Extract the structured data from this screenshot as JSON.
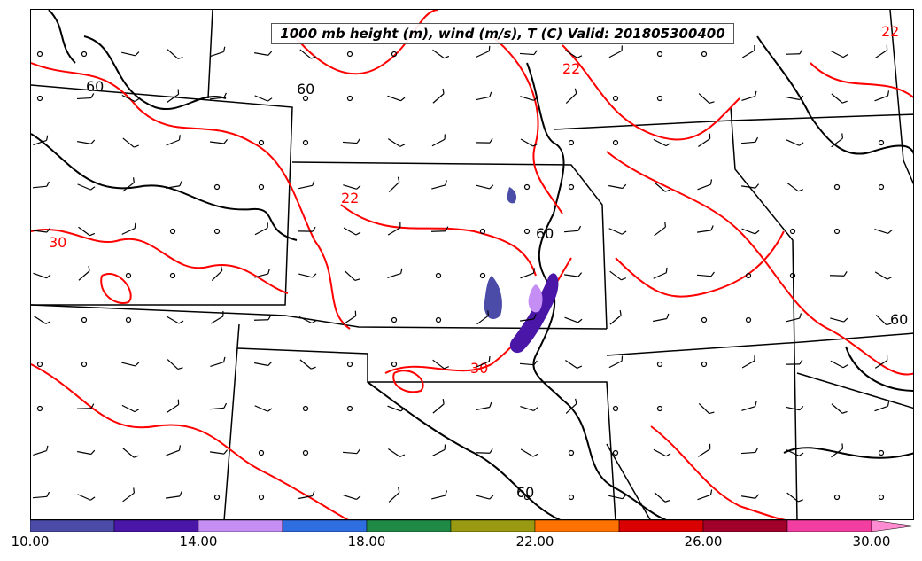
{
  "map": {
    "title": "1000 mb height (m), wind (m/s), T (C) Valid: 201805300400",
    "temp_contour_color": "#ff0000",
    "height_contour_color": "#000000",
    "temp_contour_labels": [
      "30",
      "22",
      "22",
      "30",
      "22"
    ],
    "height_contour_labels": [
      "60",
      "60",
      "60",
      "60",
      "60"
    ]
  },
  "colorbar": {
    "min": 10.0,
    "max": 30.0,
    "extend": "max",
    "colors": [
      "#4b4ba8",
      "#4a16a8",
      "#c48ef5",
      "#2f6ee0",
      "#1f8a45",
      "#9a9a12",
      "#ff7200",
      "#d80000",
      "#a0002a",
      "#f23ea0",
      "#ff8cd0"
    ],
    "tick_labels": [
      "10.00",
      "14.00",
      "18.00",
      "22.00",
      "26.00",
      "30.00"
    ]
  }
}
